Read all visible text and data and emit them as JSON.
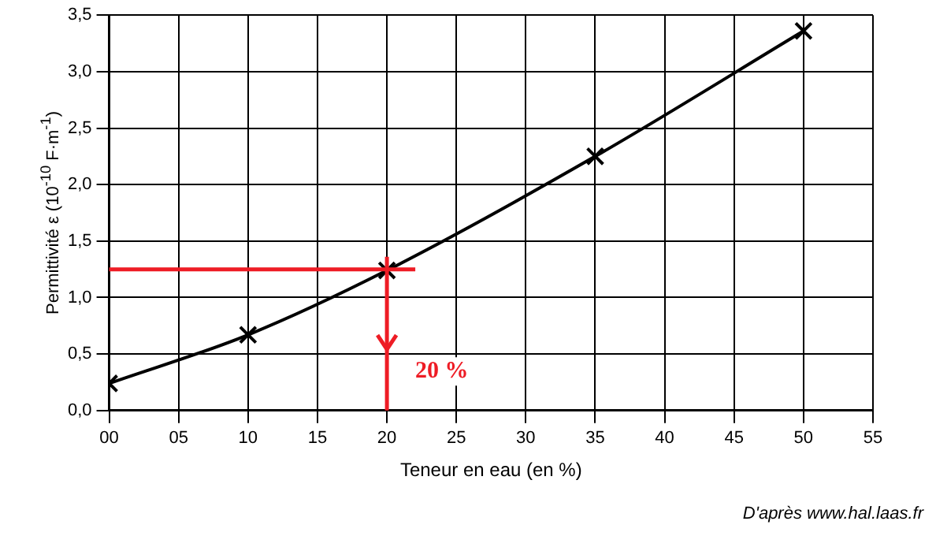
{
  "chart_data": {
    "type": "line",
    "xlabel": "Teneur en eau (en %)",
    "ylabel": "Permittivité ε (10$^{-10}$ F·m$^{-1}$)",
    "x": [
      0,
      10,
      20,
      35,
      50
    ],
    "series": [
      {
        "color": "#000000",
        "values": [
          0.24,
          0.67,
          1.24,
          2.25,
          3.36
        ]
      }
    ],
    "xlim": [
      0,
      55
    ],
    "xticks": [
      {
        "value": 0,
        "label": "00"
      },
      {
        "value": 5,
        "label": "05"
      },
      10,
      15,
      20,
      25,
      30,
      35,
      40,
      45,
      50,
      55
    ],
    "ylim": [
      0,
      3.5
    ],
    "yticks": [
      {
        "value": 0,
        "label": "0,0"
      },
      {
        "value": 0.5,
        "label": "0,5"
      },
      {
        "value": 1,
        "label": "1,0"
      },
      {
        "value": 1.5,
        "label": "1,5"
      },
      {
        "value": 2,
        "label": "2,0"
      },
      {
        "value": 2.5,
        "label": "2,5"
      },
      {
        "value": 3,
        "label": "3,0"
      },
      {
        "value": 3.5,
        "label": "3,5"
      }
    ],
    "grid": true,
    "legend": false,
    "marker": "cross",
    "line_style": "solid",
    "ref_lines": [
      {
        "axis": "y",
        "value": 1.25,
        "color": "#ee1c25"
      },
      {
        "axis": "x",
        "value": 20,
        "color": "#ee1c25",
        "label": "20 %"
      }
    ],
    "annotations": [
      "D'après www.hal.laas.fr"
    ]
  }
}
